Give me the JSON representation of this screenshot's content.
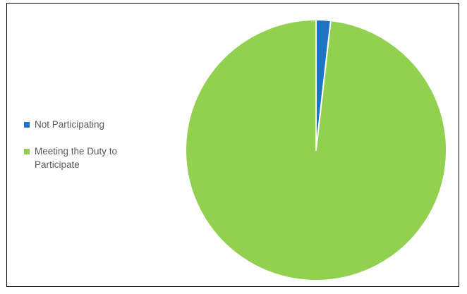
{
  "chart_data": {
    "type": "pie",
    "title": "",
    "categories": [
      "Not Participating",
      "Meeting the Duty to Participate"
    ],
    "values": [
      1.8,
      98.2
    ],
    "colors": [
      "#1F73C4",
      "#92D050"
    ],
    "legend_placement": "left",
    "slice_border_color": "#ffffff"
  }
}
